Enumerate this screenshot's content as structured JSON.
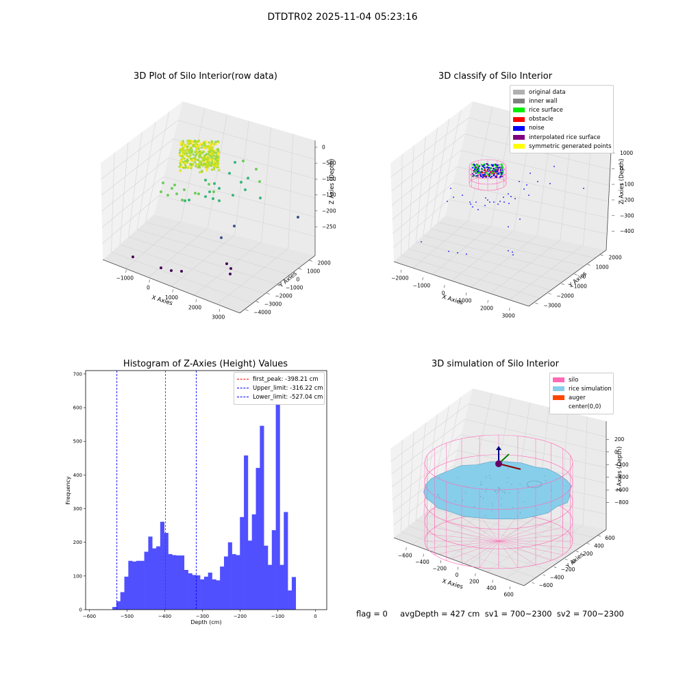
{
  "suptitle": "DTDTR02 2025-11-04 05:23:16",
  "footer": {
    "text": "flag = 0     avgDepth = 427 cm  sv1 = 700~2300  sv2 = 700~2300",
    "flag": 0,
    "avgDepth_cm": 427,
    "sv1": "700~2300",
    "sv2": "700~2300"
  },
  "chart_data": [
    {
      "type": "scatter",
      "projection": "3d",
      "title": "3D Plot of Silo Interior(row data)",
      "xlabel": "X Axies",
      "ylabel": "Y Axies",
      "zlabel": "Z Axies (Depth)",
      "x_ticks": [
        "−1000",
        "0",
        "1000",
        "2000",
        "3000"
      ],
      "y_ticks": [
        "−4000",
        "−3000",
        "−2000",
        "−1000",
        "0",
        "1000",
        "2000"
      ],
      "z_ticks": [
        "0",
        "−500",
        "−1000",
        "−1500",
        "−2000",
        "−2500"
      ],
      "colormap": "viridis (by depth)",
      "grid": true
    },
    {
      "type": "scatter",
      "projection": "3d",
      "title": "3D classify of Silo Interior",
      "xlabel": "X Axies",
      "ylabel": "Y Axies",
      "zlabel": "Z Axies (Depth)",
      "x_ticks": [
        "−2000",
        "−1000",
        "0",
        "1000",
        "2000",
        "3000"
      ],
      "y_ticks": [
        "−3000",
        "−2000",
        "−1000",
        "0",
        "1000",
        "2000"
      ],
      "z_ticks": [
        "1000",
        "0",
        "−1000",
        "−2000",
        "−3000",
        "−4000"
      ],
      "legend_position": "top-right",
      "legend": [
        {
          "label": "original data",
          "color": "#b0b0b0"
        },
        {
          "label": "inner wall",
          "color": "#808080"
        },
        {
          "label": "rice surface",
          "color": "#00ee00"
        },
        {
          "label": "obstacle",
          "color": "#ff0000"
        },
        {
          "label": "noise",
          "color": "#0000ff"
        },
        {
          "label": "interpolated rice surface",
          "color": "#800080"
        },
        {
          "label": "symmetric generated points",
          "color": "#ffff00"
        }
      ],
      "grid": true
    },
    {
      "type": "bar",
      "subtype": "histogram",
      "title": "Histogram of Z-Axies (Height) Values",
      "xlabel": "Depth (cm)",
      "ylabel": "Frequency",
      "xlim": [
        -610,
        30
      ],
      "ylim": [
        0,
        710
      ],
      "x_ticks": [
        -600,
        -500,
        -400,
        -300,
        -200,
        -100,
        0
      ],
      "y_ticks": [
        0,
        100,
        200,
        300,
        400,
        500,
        600,
        700
      ],
      "bar_color": "#5050ff",
      "bins": {
        "start": -539,
        "width": 10.58,
        "values": [
          8,
          25,
          52,
          98,
          145,
          143,
          145,
          145,
          172,
          217,
          182,
          188,
          261,
          228,
          165,
          162,
          161,
          161,
          118,
          108,
          103,
          102,
          90,
          98,
          110,
          90,
          87,
          128,
          158,
          200,
          165,
          162,
          275,
          458,
          205,
          283,
          421,
          546,
          190,
          133,
          236,
          670,
          133,
          290,
          57,
          97
        ]
      },
      "vlines": [
        {
          "x": -398.21,
          "color": "#ff0000",
          "label": "first_peak: -398.21 cm"
        },
        {
          "x": -316.22,
          "color": "#0000ff",
          "label": "Upper_limit: -316.22 cm"
        },
        {
          "x": -527.04,
          "color": "#0000ff",
          "label": "Lower_limit: -527.04 cm"
        }
      ],
      "legend_position": "top-right",
      "grid": false
    },
    {
      "type": "area",
      "projection": "3d",
      "title": "3D simulation of Silo Interior",
      "xlabel": "X Axies",
      "ylabel": "Y Axies",
      "zlabel": "Z Axies (Depth)",
      "x_ticks": [
        "−600",
        "−400",
        "−200",
        "0",
        "200",
        "400",
        "600"
      ],
      "y_ticks": [
        "−600",
        "−400",
        "−200",
        "0",
        "200",
        "400",
        "600"
      ],
      "z_ticks": [
        "200",
        "0",
        "−200",
        "−400",
        "−600",
        "−800"
      ],
      "legend_position": "top-right",
      "legend": [
        {
          "label": "silo",
          "color": "#ff69b4"
        },
        {
          "label": "rice simulation",
          "color": "#87ceeb"
        },
        {
          "label": "auger",
          "color": "#ff4500"
        },
        {
          "label": "center(0,0)",
          "color": ""
        }
      ],
      "grid": true
    }
  ]
}
